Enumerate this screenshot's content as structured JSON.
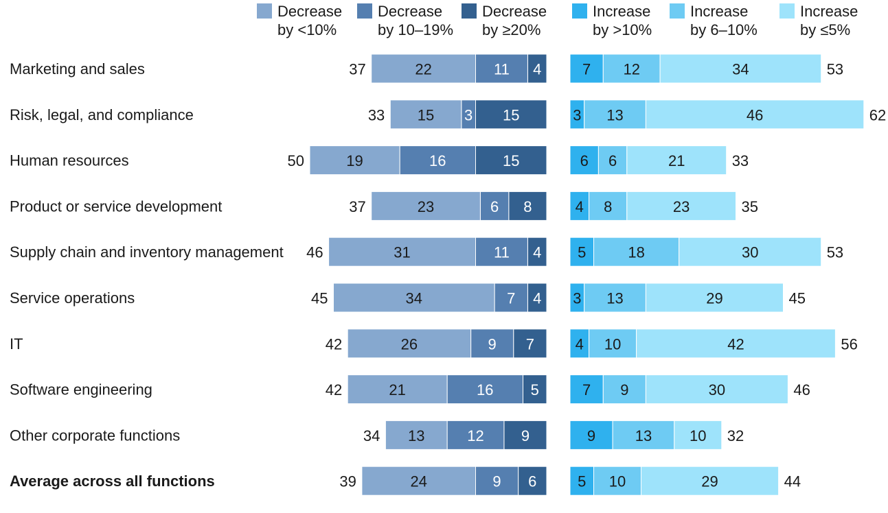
{
  "chart_data": {
    "type": "bar",
    "orientation": "horizontal-diverging-stacked",
    "categories": [
      "Marketing and sales",
      "Risk, legal, and compliance",
      "Human resources",
      "Product or service development",
      "Supply chain and inventory management",
      "Service operations",
      "IT",
      "Software engineering",
      "Other corporate functions",
      "Average across all functions"
    ],
    "bold_categories": [
      "Average across all functions"
    ],
    "decrease_series": [
      {
        "name": "Decrease by <10%",
        "legend_lines": [
          "Decrease",
          "by <10%"
        ],
        "color": "#86a8cf",
        "values": [
          22,
          15,
          19,
          23,
          31,
          34,
          26,
          21,
          13,
          24
        ]
      },
      {
        "name": "Decrease by 10–19%",
        "legend_lines": [
          "Decrease",
          "by 10–19%"
        ],
        "color": "#557fb0",
        "values": [
          11,
          3,
          16,
          6,
          11,
          7,
          9,
          16,
          12,
          9
        ]
      },
      {
        "name": "Decrease by ≥20%",
        "legend_lines": [
          "Decrease",
          "by ≥20%"
        ],
        "color": "#33608f",
        "values": [
          4,
          15,
          15,
          8,
          4,
          4,
          7,
          5,
          9,
          6
        ]
      }
    ],
    "decrease_totals": [
      37,
      33,
      50,
      37,
      46,
      45,
      42,
      42,
      34,
      39
    ],
    "increase_series": [
      {
        "name": "Increase by >10%",
        "legend_lines": [
          "Increase",
          "by >10%"
        ],
        "color": "#2fb1ee",
        "values": [
          7,
          3,
          6,
          4,
          5,
          3,
          4,
          7,
          9,
          5
        ]
      },
      {
        "name": "Increase by 6–10%",
        "legend_lines": [
          "Increase",
          "by 6–10%"
        ],
        "color": "#6ecbf3",
        "values": [
          12,
          13,
          6,
          8,
          18,
          13,
          10,
          9,
          13,
          10
        ]
      },
      {
        "name": "Increase by ≤5%",
        "legend_lines": [
          "Increase",
          "by ≤5%"
        ],
        "color": "#9ee3fb",
        "values": [
          34,
          46,
          21,
          23,
          30,
          29,
          42,
          30,
          10,
          29
        ]
      }
    ],
    "increase_totals": [
      53,
      62,
      33,
      35,
      53,
      45,
      56,
      46,
      32,
      44
    ],
    "grid": false,
    "legend_placement": "top"
  }
}
